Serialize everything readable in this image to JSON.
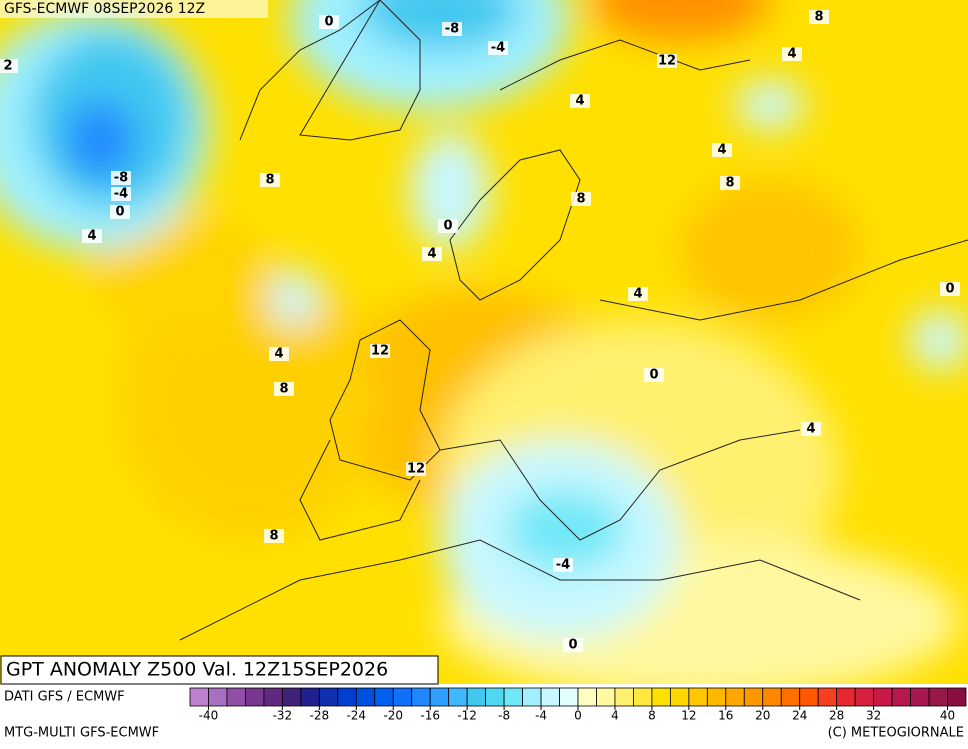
{
  "header": "GFS-ECMWF 08SEP2026 12Z",
  "title": "GPT ANOMALY Z500 Val. 12Z15SEP2026",
  "source": "DATI GFS / ECMWF",
  "model": "MTG-MULTI GFS-ECMWF",
  "copyright": "(C) METEOGIORNALE",
  "contour_labels": [
    0,
    -8,
    -4,
    8,
    12,
    4,
    4,
    2,
    -8,
    -4,
    0,
    8,
    4,
    4,
    8,
    8,
    0,
    4,
    4,
    0,
    12,
    4,
    8,
    0,
    4,
    12,
    8,
    -4,
    0
  ],
  "colorbar": {
    "lim": [
      -42,
      42
    ],
    "ticks": [
      -40,
      -32,
      -28,
      -24,
      -20,
      -16,
      -12,
      -8,
      -4,
      0,
      4,
      8,
      12,
      16,
      20,
      24,
      28,
      32,
      40
    ],
    "colors": [
      "#c080d0",
      "#a870c0",
      "#9050a8",
      "#783890",
      "#602880",
      "#402078",
      "#202090",
      "#1030b0",
      "#0040d0",
      "#0050e0",
      "#0060f0",
      "#1070f8",
      "#2088ff",
      "#30a0ff",
      "#40b8ff",
      "#40c8f0",
      "#50d8f0",
      "#70e8f8",
      "#a0f0ff",
      "#c8f8ff",
      "#e0ffff",
      "#ffffc0",
      "#fffaa0",
      "#fff070",
      "#ffe840",
      "#ffe000",
      "#ffd800",
      "#ffc800",
      "#ffb800",
      "#ffa800",
      "#ff9800",
      "#ff8800",
      "#ff7000",
      "#ff5800",
      "#f84020",
      "#e82830",
      "#d82040",
      "#c81848",
      "#b81850",
      "#a81850",
      "#981848",
      "#881040"
    ]
  }
}
